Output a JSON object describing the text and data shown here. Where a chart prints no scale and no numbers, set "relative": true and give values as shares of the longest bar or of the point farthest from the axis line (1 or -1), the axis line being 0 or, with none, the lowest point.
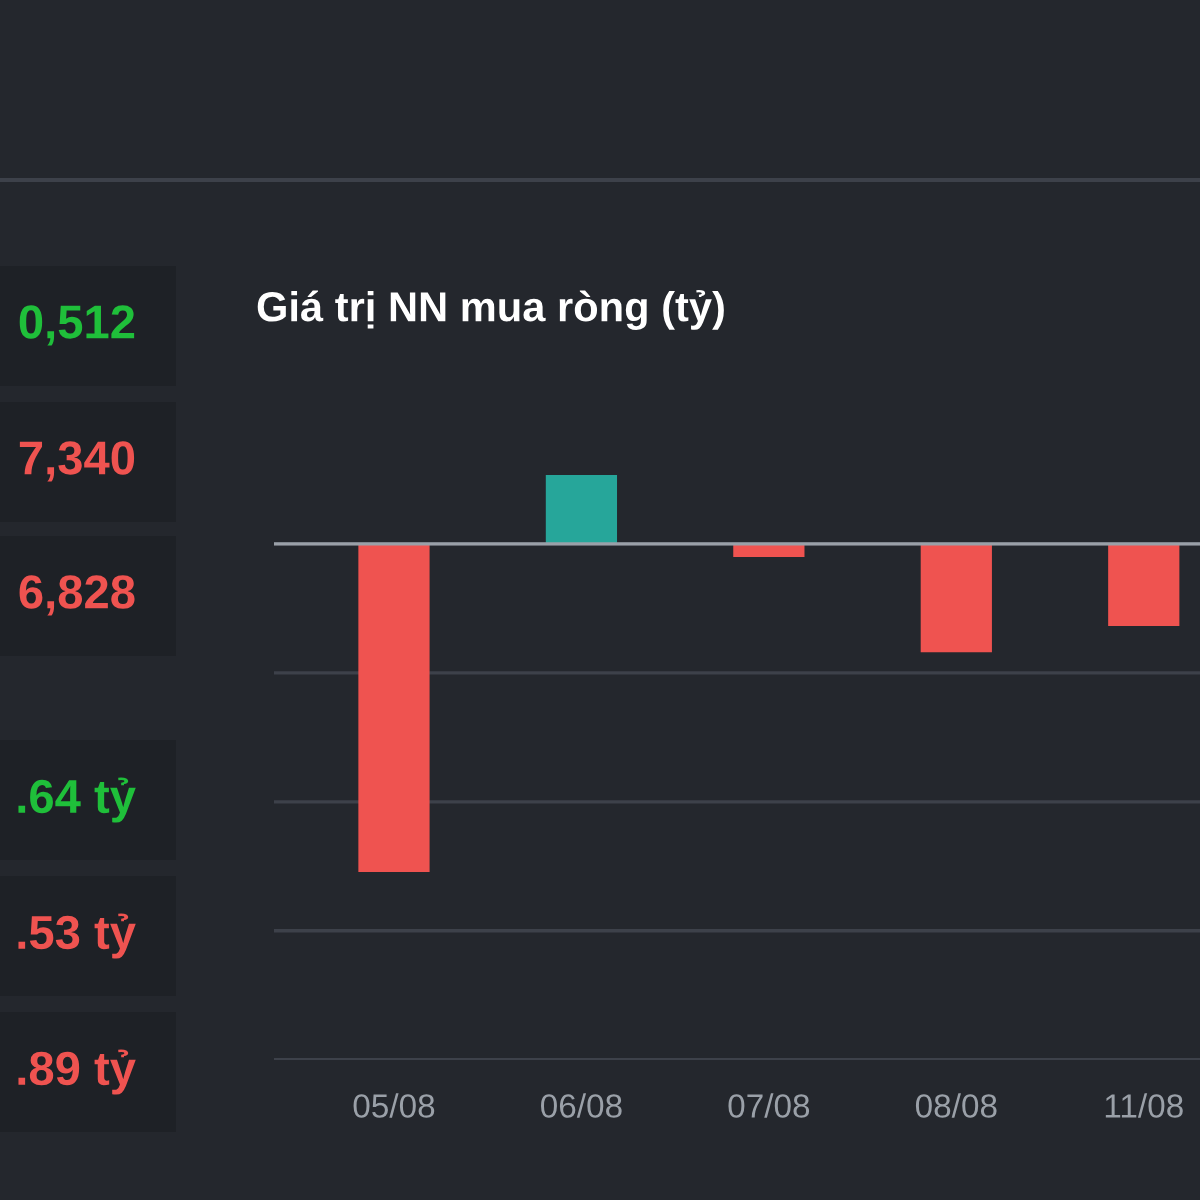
{
  "chart_data": {
    "type": "bar",
    "title": "Giá trị NN mua ròng (tỷ)",
    "relative": true,
    "grid": "y",
    "categories": [
      "05/08",
      "06/08",
      "07/08",
      "08/08",
      "11/08"
    ],
    "values": [
      -1,
      0.21,
      -0.04,
      -0.33,
      -0.25
    ],
    "colors": [
      "#ef5350",
      "#26a69a",
      "#ef5350",
      "#ef5350",
      "#ef5350"
    ],
    "annotations": [
      "0,512",
      "7,340",
      "6,828",
      ".64 tỷ",
      ".53 tỷ",
      ".89 tỷ"
    ]
  }
}
